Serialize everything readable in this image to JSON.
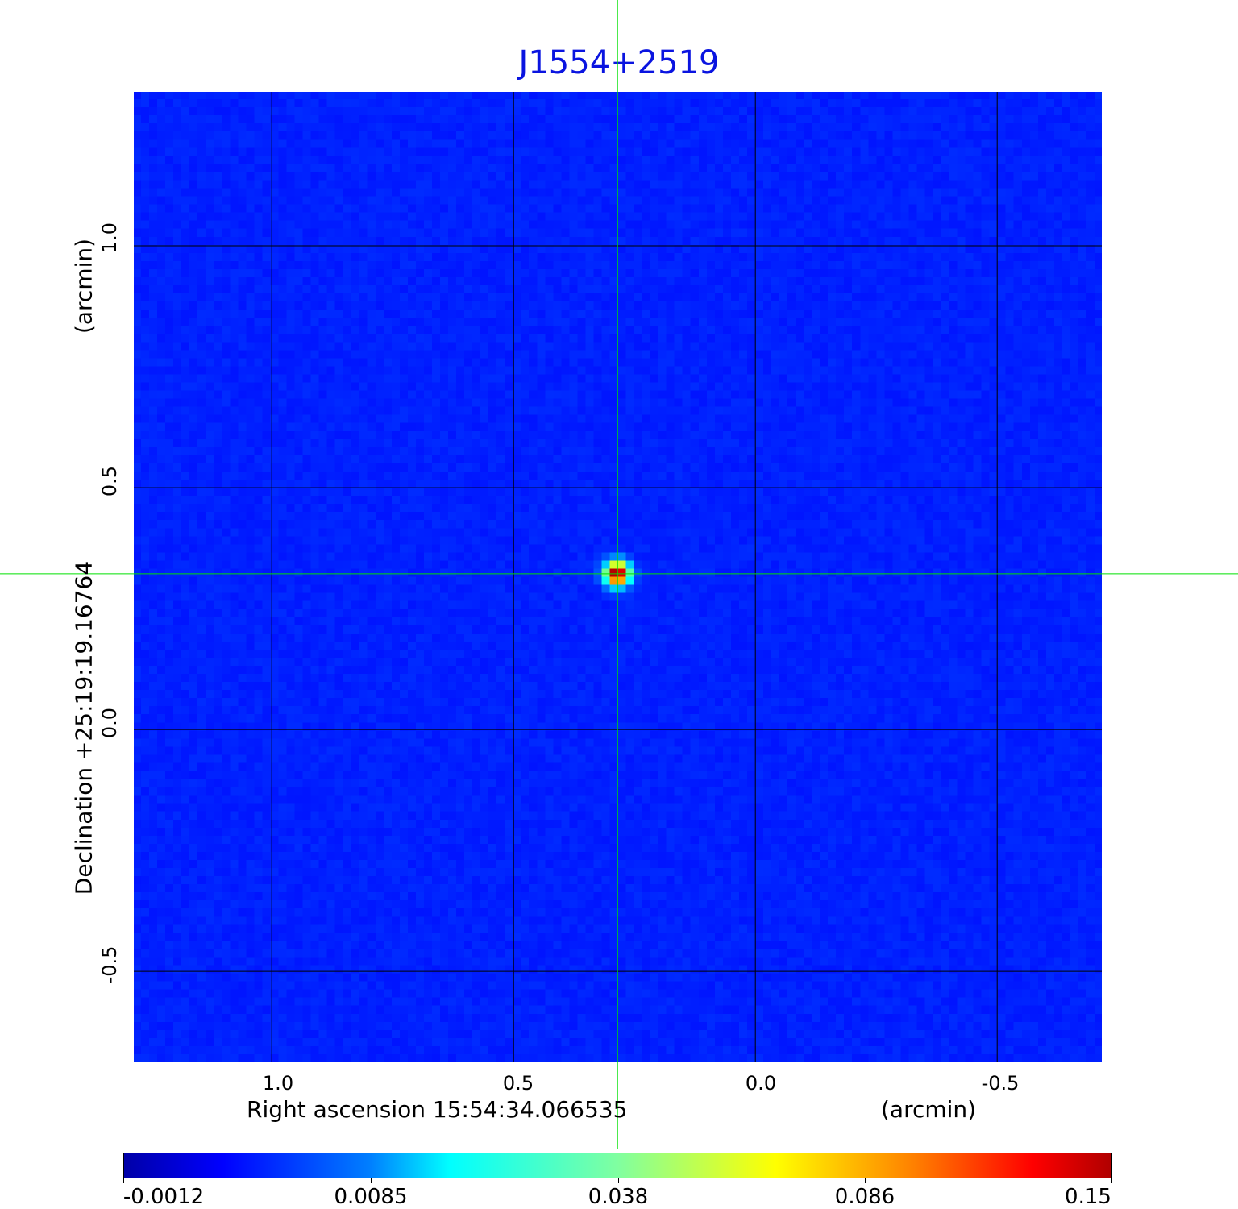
{
  "chart_data": {
    "type": "heatmap",
    "title": "J1554+2519",
    "xlabel": "Right ascension  15:54:34.066535",
    "xunit": "(arcmin)",
    "ylabel": "Declination  +25:19:19.16764",
    "yunit": "(arcmin)",
    "xlim": [
      1.287,
      -0.718
    ],
    "ylim": [
      -0.688,
      1.32
    ],
    "x_ticks": [
      "1.0",
      "0.5",
      "0.0",
      "-0.5"
    ],
    "x_tick_values": [
      1.0,
      0.5,
      0.0,
      -0.5
    ],
    "y_ticks": [
      "1.0",
      "0.5",
      "0.0",
      "-0.5"
    ],
    "y_tick_values": [
      1.0,
      0.5,
      0.0,
      -0.5
    ],
    "grid": true,
    "crosshair": {
      "x": 0.285,
      "y": 0.322,
      "color": "#00e000"
    },
    "source": {
      "x": 0.285,
      "y": 0.322,
      "peak": 0.15
    },
    "colormap": "jet",
    "colorbar": {
      "ticks": [
        "-0.0012",
        "0.0085",
        "0.038",
        "0.086",
        "0.15"
      ],
      "min": -0.0012,
      "max": 0.15,
      "placement": "bottom"
    },
    "title_color": "#0a14e0"
  }
}
